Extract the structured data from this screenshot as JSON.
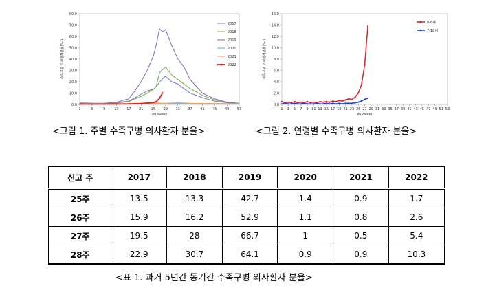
{
  "chart_data": [
    {
      "type": "line",
      "xlabel": "주(Week)",
      "ylabel": "수족구병 의사환자분율(‰)",
      "ylim": [
        0,
        80
      ],
      "yticks": [
        "0.0",
        "10.0",
        "20.0",
        "30.0",
        "40.0",
        "50.0",
        "60.0",
        "70.0",
        "80.0"
      ],
      "xticks": [
        "1",
        "5",
        "9",
        "13",
        "17",
        "21",
        "25",
        "29",
        "33",
        "37",
        "41",
        "45",
        "49",
        "53"
      ],
      "legend_position": "top-right",
      "series": [
        {
          "name": "2017",
          "color": "#8080c0",
          "x": [
            1,
            5,
            9,
            13,
            17,
            19,
            21,
            23,
            25,
            26,
            27,
            28,
            29,
            31,
            33,
            35,
            37,
            41,
            45,
            49,
            53
          ],
          "values": [
            0.8,
            0.8,
            1,
            1.5,
            3,
            6,
            9,
            12,
            13.5,
            15.9,
            19.5,
            22.9,
            25,
            20,
            18,
            14,
            10,
            6,
            3,
            1.5,
            1
          ]
        },
        {
          "name": "2018",
          "color": "#80b050",
          "x": [
            1,
            5,
            9,
            13,
            17,
            19,
            21,
            23,
            25,
            26,
            27,
            28,
            29,
            31,
            33,
            35,
            37,
            41,
            45,
            49,
            53
          ],
          "values": [
            0.6,
            0.6,
            0.8,
            1.2,
            2.5,
            5,
            7,
            10,
            13.3,
            16.2,
            28,
            30.7,
            33,
            26,
            22,
            18,
            14,
            8,
            4,
            2,
            1
          ]
        },
        {
          "name": "2019",
          "color": "#9070c0",
          "x": [
            1,
            5,
            9,
            13,
            17,
            19,
            21,
            23,
            25,
            26,
            27,
            28,
            29,
            31,
            33,
            35,
            37,
            41,
            45,
            49,
            53
          ],
          "values": [
            0.8,
            0.8,
            1,
            2,
            5,
            12,
            20,
            30,
            42.7,
            52.9,
            66.7,
            64.1,
            66,
            52,
            40,
            33,
            22,
            10,
            5,
            2,
            1
          ]
        },
        {
          "name": "2020",
          "color": "#60b8d0",
          "x": [
            1,
            5,
            9,
            13,
            17,
            21,
            25,
            29,
            33,
            37,
            41,
            45,
            49,
            53
          ],
          "values": [
            1.5,
            1.2,
            0.8,
            0.5,
            0.6,
            1,
            1.4,
            0.9,
            0.8,
            0.8,
            0.8,
            0.8,
            0.8,
            0.8
          ]
        },
        {
          "name": "2021",
          "color": "#f0a060",
          "x": [
            1,
            5,
            9,
            13,
            17,
            21,
            25,
            29,
            33,
            37,
            41,
            45,
            49,
            53
          ],
          "values": [
            0.5,
            0.5,
            0.5,
            0.5,
            0.6,
            0.7,
            0.9,
            1,
            1.5,
            1,
            0.8,
            0.7,
            0.6,
            0.6
          ]
        },
        {
          "name": "2022",
          "color": "#e02020",
          "x": [
            1,
            5,
            9,
            13,
            17,
            21,
            23,
            25,
            26,
            27,
            28
          ],
          "values": [
            0.3,
            0.3,
            0.3,
            0.4,
            0.5,
            0.8,
            1.2,
            1.7,
            2.6,
            5.4,
            10.3
          ]
        }
      ]
    },
    {
      "type": "line",
      "xlabel": "주(Week)",
      "ylabel": "수족구병 의사환자분율(‰)",
      "ylim": [
        0,
        16
      ],
      "yticks": [
        "0.0",
        "2.0",
        "4.0",
        "6.0",
        "8.0",
        "10.0",
        "12.0",
        "14.0",
        "16.0"
      ],
      "xticks": [
        "1",
        "3",
        "5",
        "7",
        "9",
        "11",
        "13",
        "15",
        "17",
        "19",
        "21",
        "23",
        "25",
        "27",
        "29",
        "31",
        "33",
        "35",
        "37",
        "39",
        "41",
        "43",
        "45",
        "47",
        "49",
        "51",
        "53"
      ],
      "legend_position": "top-right",
      "series": [
        {
          "name": "0-6세",
          "color": "#e02020",
          "x": [
            1,
            2,
            3,
            4,
            5,
            6,
            7,
            8,
            9,
            10,
            11,
            12,
            13,
            14,
            15,
            16,
            17,
            18,
            19,
            20,
            21,
            22,
            23,
            24,
            25,
            26,
            27,
            28
          ],
          "values": [
            0.5,
            0.3,
            0.4,
            0.3,
            0.5,
            0.3,
            0.4,
            0.3,
            0.5,
            0.3,
            0.4,
            0.3,
            0.5,
            0.4,
            0.5,
            0.4,
            0.6,
            0.5,
            0.7,
            0.6,
            0.8,
            1,
            0.9,
            1.3,
            2,
            3.5,
            7,
            13.8
          ]
        },
        {
          "name": "7-18세",
          "color": "#2040d0",
          "x": [
            1,
            2,
            3,
            4,
            5,
            6,
            7,
            8,
            9,
            10,
            11,
            12,
            13,
            14,
            15,
            16,
            17,
            18,
            19,
            20,
            21,
            22,
            23,
            24,
            25,
            26,
            27,
            28
          ],
          "values": [
            0.1,
            0.2,
            0.1,
            0.1,
            0.2,
            0.1,
            0.1,
            0.2,
            0.1,
            0.1,
            0.1,
            0.2,
            0.1,
            0.1,
            0.2,
            0.1,
            0.2,
            0.1,
            0.2,
            0.1,
            0.2,
            0.2,
            0.2,
            0.3,
            0.4,
            0.6,
            0.9,
            1.1
          ]
        }
      ]
    }
  ],
  "captions": {
    "fig1": "<그림 1. 주별 수족구병 의사환자 분율>",
    "fig2": "<그림 2. 연령별 수족구병 의사환자 분율>",
    "table1": "<표 1. 과거 5년간 동기간 수족구병 의사환자 분율>"
  },
  "table": {
    "headers": [
      "신고 주",
      "2017",
      "2018",
      "2019",
      "2020",
      "2021",
      "2022"
    ],
    "rows": [
      [
        "25주",
        "13.5",
        "13.3",
        "42.7",
        "1.4",
        "0.9",
        "1.7"
      ],
      [
        "26주",
        "15.9",
        "16.2",
        "52.9",
        "1.1",
        "0.8",
        "2.6"
      ],
      [
        "27주",
        "19.5",
        "28",
        "66.7",
        "1",
        "0.5",
        "5.4"
      ],
      [
        "28주",
        "22.9",
        "30.7",
        "64.1",
        "0.9",
        "0.9",
        "10.3"
      ]
    ]
  }
}
